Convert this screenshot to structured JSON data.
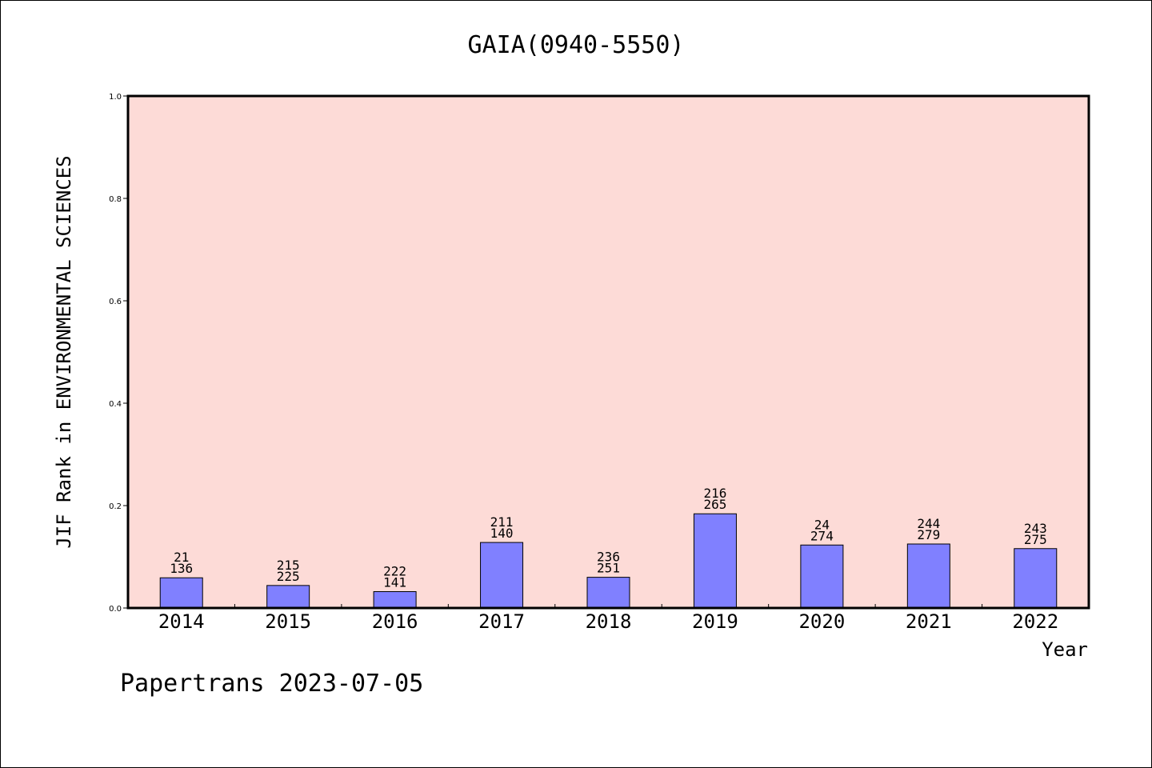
{
  "chart_data": {
    "type": "bar",
    "title": "GAIA(0940-5550)",
    "xlabel": "Year",
    "ylabel": "JIF Rank in ENVIRONMENTAL SCIENCES",
    "ylim": [
      0,
      1.0
    ],
    "yticks": [
      "0.0",
      "0.2",
      "0.4",
      "0.6",
      "0.8",
      "1.0"
    ],
    "categories": [
      "2014",
      "2015",
      "2016",
      "2017",
      "2018",
      "2019",
      "2020",
      "2021",
      "2022"
    ],
    "values": [
      0.059,
      0.044,
      0.032,
      0.128,
      0.06,
      0.184,
      0.123,
      0.125,
      0.116
    ],
    "labels": [
      [
        "21",
        "136"
      ],
      [
        "215",
        "225"
      ],
      [
        "222",
        "141"
      ],
      [
        "211",
        "140"
      ],
      [
        "236",
        "251"
      ],
      [
        "216",
        "265"
      ],
      [
        "24",
        "274"
      ],
      [
        "244",
        "279"
      ],
      [
        "243",
        "275"
      ]
    ],
    "grid": false,
    "colors": {
      "bar": "#8080ff",
      "plot_background": "#fddbd7"
    }
  },
  "footer": "Papertrans 2023-07-05"
}
